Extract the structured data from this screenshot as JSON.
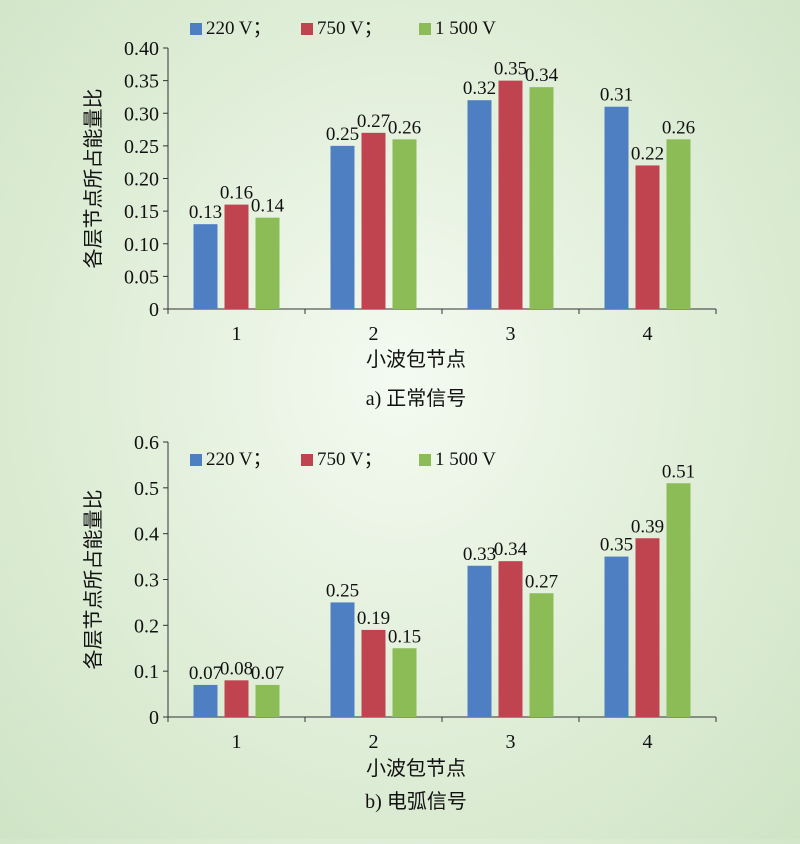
{
  "chart_data": [
    {
      "type": "bar",
      "caption": "a) 正常信号",
      "xlabel": "小波包节点",
      "ylabel": "各层节点所占能量比",
      "categories": [
        "1",
        "2",
        "3",
        "4"
      ],
      "ylim": [
        0,
        0.4
      ],
      "yticks": [
        "0",
        "0.05",
        "0.10",
        "0.15",
        "0.20",
        "0.25",
        "0.30",
        "0.35",
        "0.40"
      ],
      "legend_position": "top-left",
      "series": [
        {
          "name": "220 V；",
          "color": "#4f7fc3",
          "values": [
            0.13,
            0.25,
            0.32,
            0.31
          ],
          "labels": [
            "0.13",
            "0.25",
            "0.32",
            "0.31"
          ]
        },
        {
          "name": "750 V；",
          "color": "#c0444f",
          "values": [
            0.16,
            0.27,
            0.35,
            0.22
          ],
          "labels": [
            "0.16",
            "0.27",
            "0.35",
            "0.22"
          ]
        },
        {
          "name": "1 500 V",
          "color": "#8cbc56",
          "values": [
            0.14,
            0.26,
            0.34,
            0.26
          ],
          "labels": [
            "0.14",
            "0.26",
            "0.34",
            "0.26"
          ]
        }
      ]
    },
    {
      "type": "bar",
      "caption": "b) 电弧信号",
      "xlabel": "小波包节点",
      "ylabel": "各层节点所占能量比",
      "categories": [
        "1",
        "2",
        "3",
        "4"
      ],
      "ylim": [
        0,
        0.6
      ],
      "yticks": [
        "0",
        "0.1",
        "0.2",
        "0.3",
        "0.4",
        "0.5",
        "0.6"
      ],
      "legend_position": "top-left",
      "series": [
        {
          "name": "220 V；",
          "color": "#4f7fc3",
          "values": [
            0.07,
            0.25,
            0.33,
            0.35
          ],
          "labels": [
            "0.07",
            "0.25",
            "0.33",
            "0.35"
          ]
        },
        {
          "name": "750 V；",
          "color": "#c0444f",
          "values": [
            0.08,
            0.19,
            0.34,
            0.39
          ],
          "labels": [
            "0.08",
            "0.19",
            "0.34",
            "0.39"
          ]
        },
        {
          "name": "1 500 V",
          "color": "#8cbc56",
          "values": [
            0.07,
            0.15,
            0.27,
            0.51
          ],
          "labels": [
            "0.07",
            "0.15",
            "0.27",
            "0.51"
          ]
        }
      ]
    }
  ]
}
